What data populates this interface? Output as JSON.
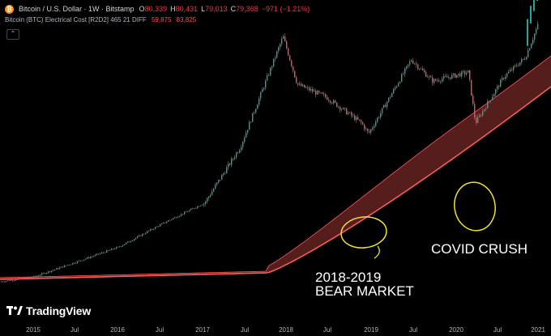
{
  "header": {
    "coin_glyph": "₿",
    "title": "Bitcoin / U.S. Dollar · 1W · Bitstamp",
    "ohlc": [
      {
        "key": "O",
        "value": "80,339"
      },
      {
        "key": "H",
        "value": "80,431"
      },
      {
        "key": "L",
        "value": "79,013"
      },
      {
        "key": "C",
        "value": "79,368"
      },
      {
        "key": "",
        "value": "−971 (−1.21%)"
      }
    ]
  },
  "indicator": {
    "name": "Bitcoin (BTC) Electrical Cost [R2D2]",
    "params": "465 21 DIFF",
    "value1": "59,875",
    "value2": "83,825"
  },
  "collapse_glyph": "⌃",
  "brand": "TradingView",
  "x_axis": [
    "2015",
    "Jul",
    "2016",
    "Jul",
    "2017",
    "Jul",
    "2018",
    "Jul",
    "2019",
    "Jul",
    "2020",
    "Jul",
    "2021"
  ],
  "annotations": {
    "bear_market": [
      "2018-2019",
      "BEAR MARKET"
    ],
    "covid": "COVID CRUSH"
  },
  "colors": {
    "up": "#26a69a",
    "down": "#ef5350",
    "cost_band": "#ff5a5a",
    "circle": "#f2e035",
    "bitcoin": "#f7931a"
  },
  "chart_data": {
    "type": "candlestick",
    "interval": "1W",
    "scale": "log",
    "y_range_usd": [
      100,
      40000
    ],
    "x_range": [
      "2014-09",
      "2021-02"
    ],
    "price_path": [
      {
        "date": "2015-01",
        "price": 250
      },
      {
        "date": "2016-01",
        "price": 430
      },
      {
        "date": "2016-07",
        "price": 650
      },
      {
        "date": "2017-01",
        "price": 950
      },
      {
        "date": "2017-06",
        "price": 2600
      },
      {
        "date": "2017-12",
        "price": 19000
      },
      {
        "date": "2018-02",
        "price": 8000
      },
      {
        "date": "2018-06",
        "price": 6400
      },
      {
        "date": "2018-11",
        "price": 4000
      },
      {
        "date": "2018-12",
        "price": 3300
      },
      {
        "date": "2019-06",
        "price": 12500
      },
      {
        "date": "2019-09",
        "price": 8500
      },
      {
        "date": "2020-02",
        "price": 10000
      },
      {
        "date": "2020-03",
        "price": 4000
      },
      {
        "date": "2020-07",
        "price": 9200
      },
      {
        "date": "2020-10",
        "price": 13000
      },
      {
        "date": "2021-01",
        "price": 35000
      }
    ],
    "electrical_cost_band": {
      "lower_label": "59,875",
      "upper_label": "83,825"
    }
  }
}
